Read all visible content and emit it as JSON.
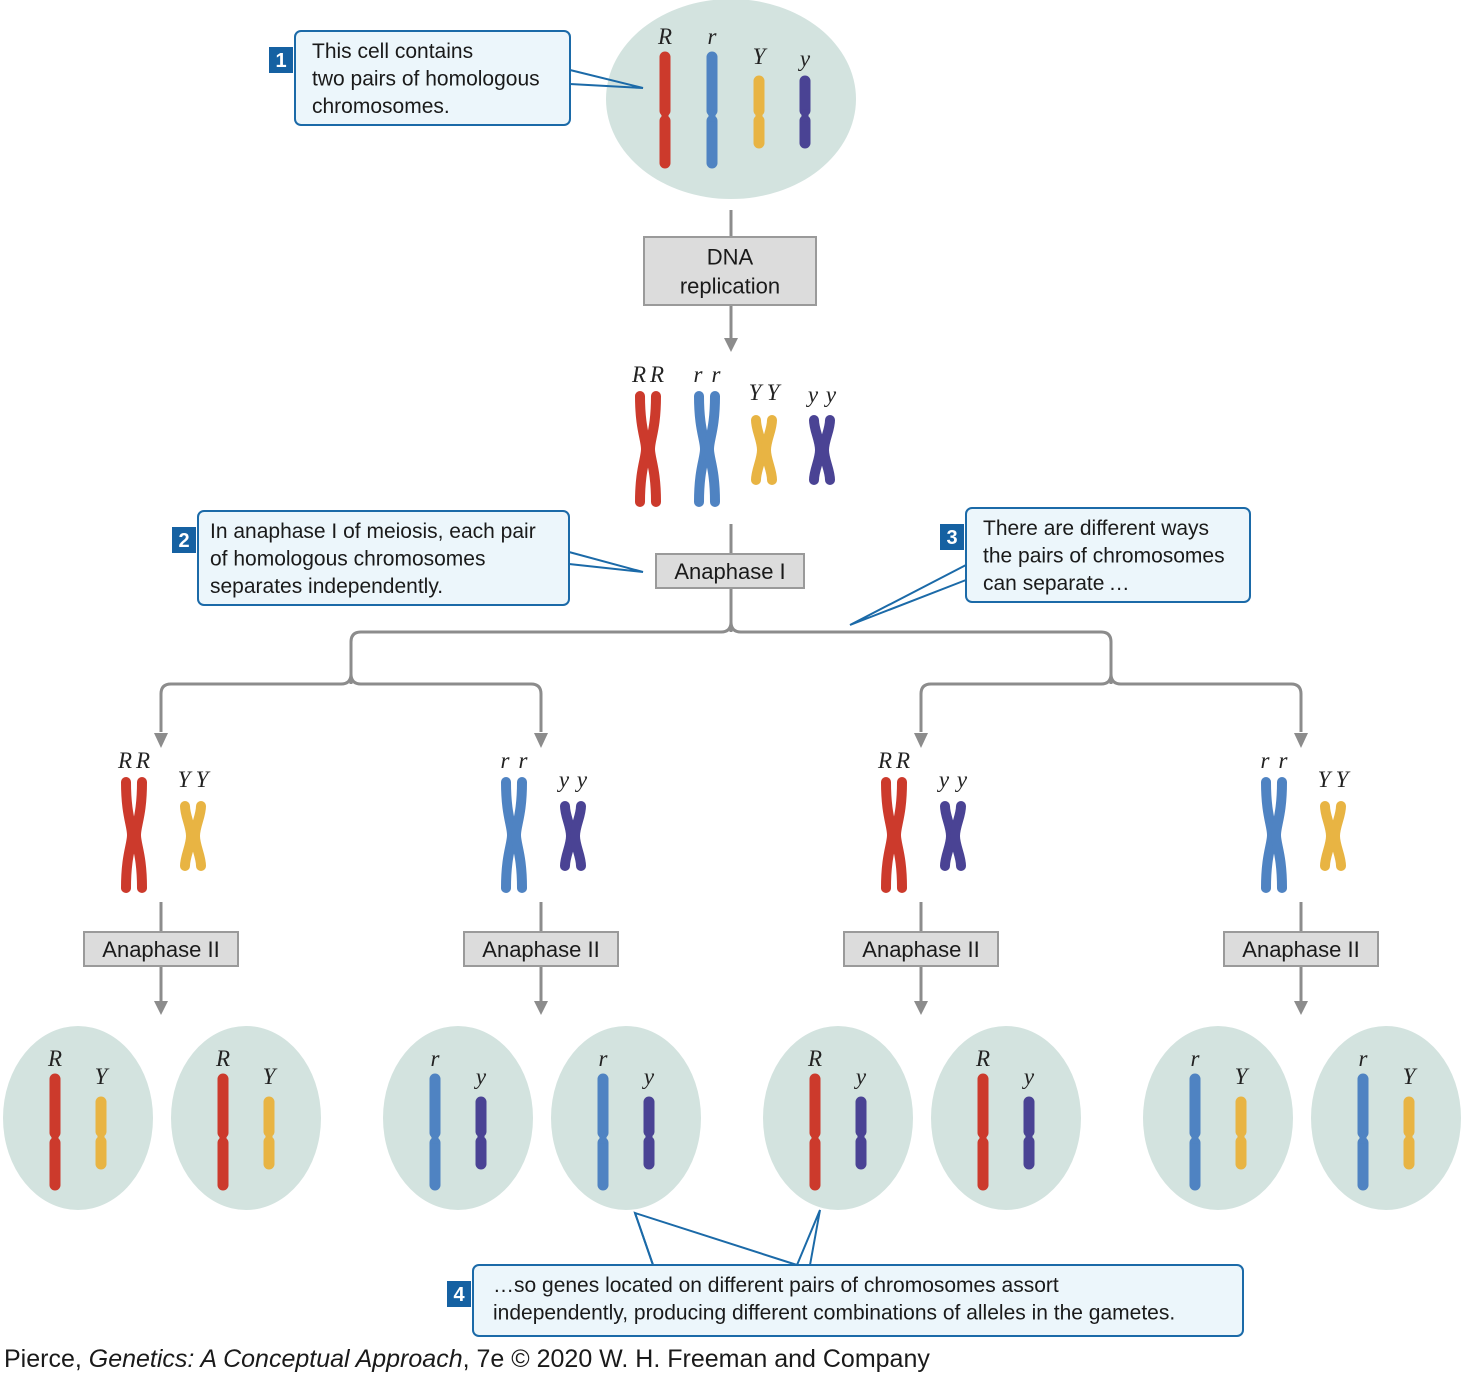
{
  "colors": {
    "R": "#cc3a2c",
    "r": "#4f83c2",
    "Y": "#e8b443",
    "y": "#4a4394",
    "cell": "#d3e3df",
    "callout_border": "#1b6aa8",
    "callout_fill": "#ecf6fb",
    "step_box": "#dcdcdc",
    "connector": "#8c8c8c"
  },
  "top_cell": {
    "alleles": [
      "R",
      "r",
      "Y",
      "y"
    ]
  },
  "replicated": {
    "labels": [
      [
        "R",
        "R"
      ],
      [
        "r",
        "r"
      ],
      [
        "Y",
        "Y"
      ],
      [
        "y",
        "y"
      ]
    ]
  },
  "steps": {
    "dna_replication": [
      "DNA",
      "replication"
    ],
    "anaphase_1": "Anaphase I",
    "anaphase_2": "Anaphase II"
  },
  "outcomes": [
    {
      "pairs": [
        [
          "R",
          "R"
        ],
        [
          "Y",
          "Y"
        ]
      ],
      "gametes": [
        [
          "R",
          "Y"
        ],
        [
          "R",
          "Y"
        ]
      ]
    },
    {
      "pairs": [
        [
          "r",
          "r"
        ],
        [
          "y",
          "y"
        ]
      ],
      "gametes": [
        [
          "r",
          "y"
        ],
        [
          "r",
          "y"
        ]
      ]
    },
    {
      "pairs": [
        [
          "R",
          "R"
        ],
        [
          "y",
          "y"
        ]
      ],
      "gametes": [
        [
          "R",
          "y"
        ],
        [
          "R",
          "y"
        ]
      ]
    },
    {
      "pairs": [
        [
          "r",
          "r"
        ],
        [
          "Y",
          "Y"
        ]
      ],
      "gametes": [
        [
          "r",
          "Y"
        ],
        [
          "r",
          "Y"
        ]
      ]
    }
  ],
  "callouts": [
    {
      "number": "1",
      "lines": [
        "This cell contains",
        "two pairs of homologous",
        "chromosomes."
      ]
    },
    {
      "number": "2",
      "lines": [
        "In anaphase I of meiosis, each pair",
        "of homologous chromosomes",
        "separates independently."
      ]
    },
    {
      "number": "3",
      "lines": [
        "There are different ways",
        "the pairs of chromosomes",
        "can separate …"
      ]
    },
    {
      "number": "4",
      "lines": [
        "…so genes located on different pairs of chromosomes assort",
        "independently, producing different combinations of alleles in the gametes."
      ]
    }
  ],
  "credit": {
    "author": "Pierce, ",
    "title": "Genetics: A Conceptual Approach",
    "rest": ", 7e © 2020 W. H. Freeman and Company"
  }
}
